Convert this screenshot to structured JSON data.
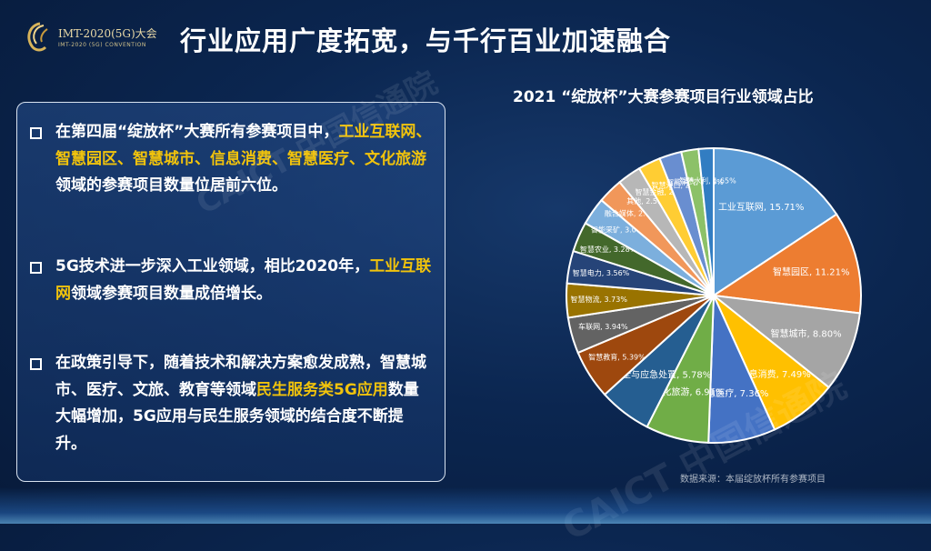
{
  "header": {
    "logo_title": "IMT-2020(5G)大会",
    "logo_subtitle": "IMT-2020 (5G) CONVENTION",
    "title": "行业应用广度拓宽，与千行百业加速融合"
  },
  "bullets": [
    {
      "segments": [
        {
          "text": "在第四届“绽放杯”大赛所有参赛项目中，",
          "highlight": false
        },
        {
          "text": "工业互联网、智慧园区、智慧城市、信息消费、智慧医疗、文化旅游",
          "highlight": true
        },
        {
          "text": "领域的参赛项目数量位居前六位。",
          "highlight": false
        }
      ]
    },
    {
      "segments": [
        {
          "text": "5G技术进一步深入工业领域，相比2020年，",
          "highlight": false
        },
        {
          "text": "工业互联网",
          "highlight": true
        },
        {
          "text": "领域参赛项目数量成倍增长。",
          "highlight": false
        }
      ]
    },
    {
      "segments": [
        {
          "text": "在政策引导下，随着技术和解决方案愈发成熟，智慧城市、医疗、文旅、教育等领域",
          "highlight": false
        },
        {
          "text": "民生服务类5G应用",
          "highlight": true
        },
        {
          "text": "数量大幅增加，5G应用与民生服务领域的结合度不断提升。",
          "highlight": false
        }
      ]
    }
  ],
  "chart_data": {
    "type": "pie",
    "title": "2021 “绽放杯”大赛参赛项目行业领域占比",
    "slices": [
      {
        "label": "工业互联网",
        "value": 15.71,
        "color": "#5b9bd5"
      },
      {
        "label": "智慧园区",
        "value": 11.21,
        "color": "#ed7d31"
      },
      {
        "label": "智慧城市",
        "value": 8.8,
        "color": "#a5a5a5"
      },
      {
        "label": "信息消费",
        "value": 7.49,
        "color": "#ffc000"
      },
      {
        "label": "智慧医疗",
        "value": 7.36,
        "color": "#4472c4"
      },
      {
        "label": "文化旅游",
        "value": 6.91,
        "color": "#70ad47"
      },
      {
        "label": "公共安全与应急处置",
        "value": 5.78,
        "color": "#255e91"
      },
      {
        "label": "智慧教育",
        "value": 5.39,
        "color": "#9e480e"
      },
      {
        "label": "车联网",
        "value": 3.94,
        "color": "#636363"
      },
      {
        "label": "智慧物流",
        "value": 3.73,
        "color": "#997300"
      },
      {
        "label": "智慧电力",
        "value": 3.56,
        "color": "#264478"
      },
      {
        "label": "智慧农业",
        "value": 3.28,
        "color": "#43682b"
      },
      {
        "label": "智能采矿",
        "value": 3.04,
        "color": "#7cafdd"
      },
      {
        "label": "融合媒体",
        "value": 2.77,
        "color": "#f1975a"
      },
      {
        "label": "其他",
        "value": 2.59,
        "color": "#b7b7b7"
      },
      {
        "label": "智慧金融",
        "value": 2.46,
        "color": "#ffcd33"
      },
      {
        "label": "智慧港口",
        "value": 2.44,
        "color": "#698ed0"
      },
      {
        "label": "智能消气",
        "value": 1.89,
        "color": "#8cc168"
      },
      {
        "label": "智慧水利",
        "value": 1.65,
        "color": "#327dc2"
      }
    ],
    "labels": [
      "工业互联网, 15.71%",
      "智慧园区, 11.21%",
      "智慧城市, 8.80%",
      "信息消费, 7.49%",
      "智慧医疗, 7.36%",
      "文化旅游, 6.91%",
      "公共安全与应急处置, 5.78%",
      "智慧教育, 5.39%",
      "车联网, 3.94%",
      "智慧物流, 3.73%",
      "智慧电力, 3.56%",
      "智慧农业, 3.28%",
      "智能采矿, 3.04%",
      "融合媒体, 2.77%",
      "其他, 2.59%",
      "智慧金融, 2.46%",
      "智慧港口, 2.44%",
      "智能消气, 1.89%",
      "智慧水利, 1.65%"
    ],
    "start": "12 o'clock",
    "direction": "clockwise"
  },
  "source": "数据来源：本届绽放杯所有参赛项目",
  "watermark": "CAICT 中国信通院"
}
